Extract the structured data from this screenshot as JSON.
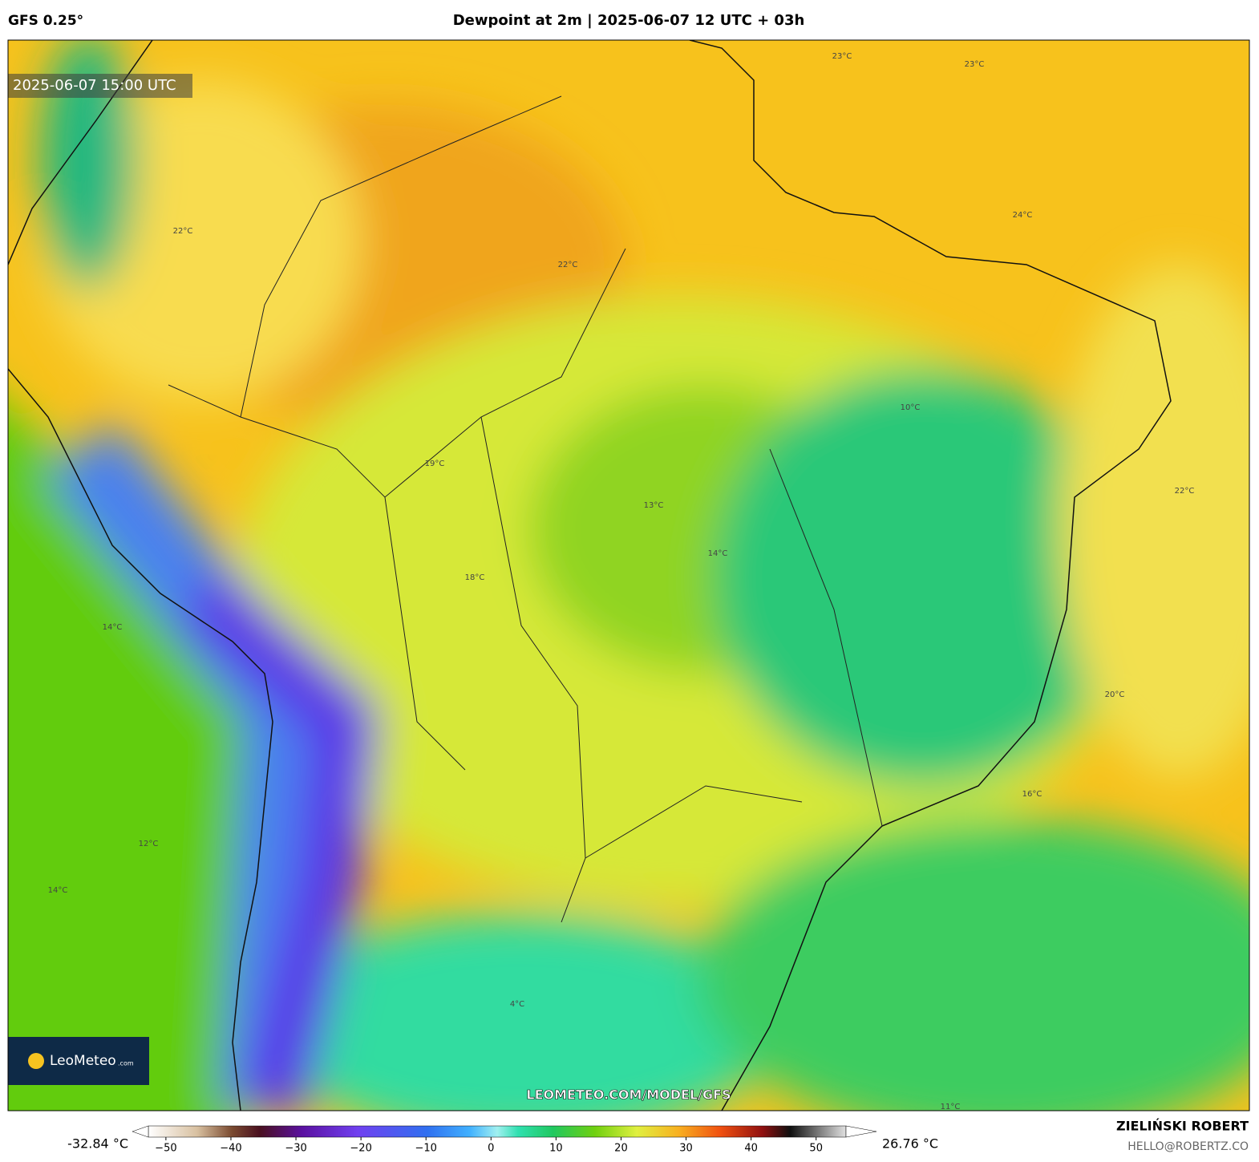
{
  "header": {
    "model": "GFS 0.25°",
    "title": "Dewpoint at 2m | 2025-06-07 12 UTC + 03h"
  },
  "map": {
    "valid_time": "2025-06-07 15:00 UTC",
    "logo": "LeoMeteo",
    "logo_suffix": ".com",
    "url": "LEOMETEO.COM/MODEL/GFS",
    "contour_labels": [
      "23°C",
      "23°C",
      "24°C",
      "22°C",
      "22°C",
      "13°C",
      "14°C",
      "10°C",
      "12°C",
      "14°C",
      "14°C",
      "22°C",
      "16°C",
      "20°C",
      "18°C",
      "19°C",
      "4°C",
      "11°C"
    ]
  },
  "colorbar": {
    "min_label": "-32.84 °C",
    "max_label": "26.76 °C",
    "xlim": [
      -52.7,
      54.6
    ],
    "ticks": [
      {
        "value": -50,
        "label": "−50"
      },
      {
        "value": -40,
        "label": "−40"
      },
      {
        "value": -30,
        "label": "−30"
      },
      {
        "value": -20,
        "label": "−20"
      },
      {
        "value": -10,
        "label": "−10"
      },
      0,
      10,
      20,
      30,
      40,
      50
    ]
  },
  "footer": {
    "author": "ZIELIŃSKI ROBERT",
    "email": "HELLO@ROBERTZ.CO"
  }
}
